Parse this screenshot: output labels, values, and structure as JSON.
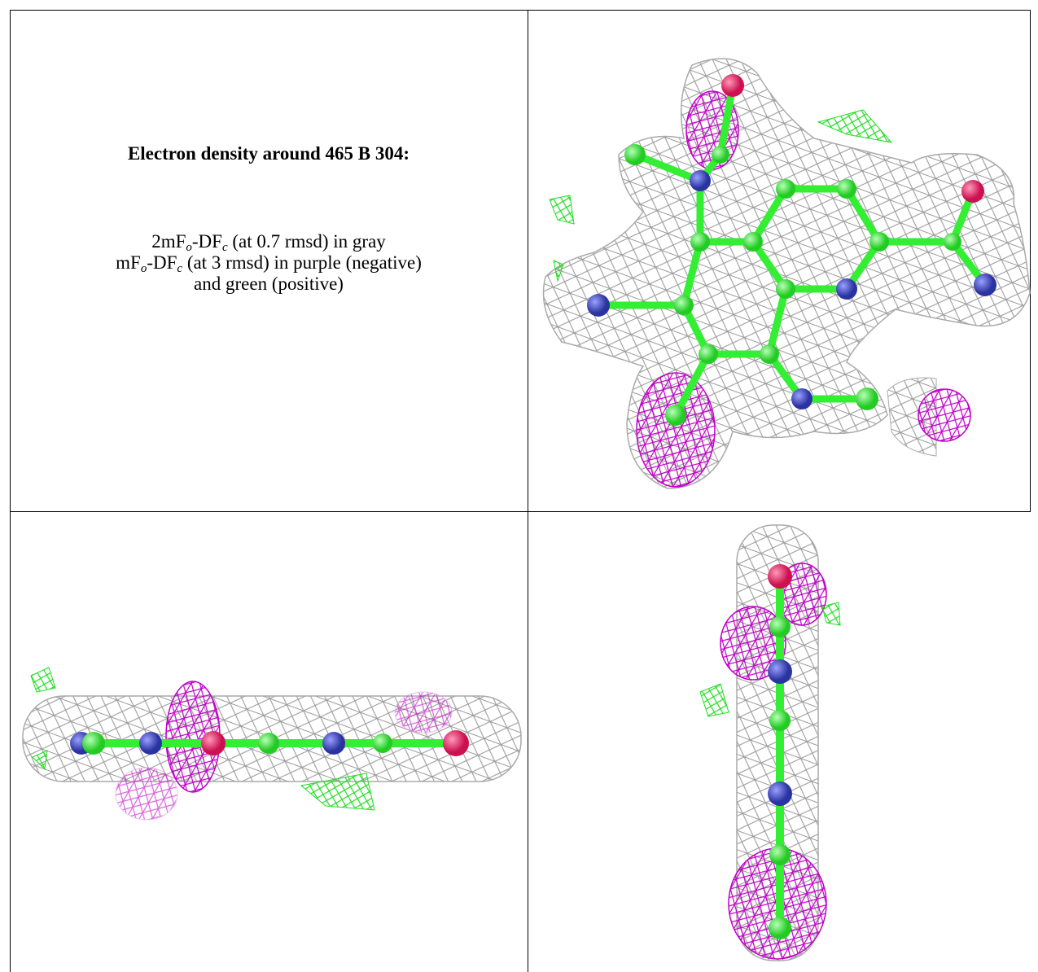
{
  "heading": "Electron density around 465 B 304:",
  "legend": {
    "lines": [
      [
        "2mF",
        "o",
        "-DF",
        "c",
        " (at 0.7 rmsd) in gray"
      ],
      [
        "mF",
        "o",
        "-DF",
        "c",
        " (at 3 rmsd) in purple (negative)"
      ],
      [
        "and green (positive)"
      ]
    ]
  }
}
